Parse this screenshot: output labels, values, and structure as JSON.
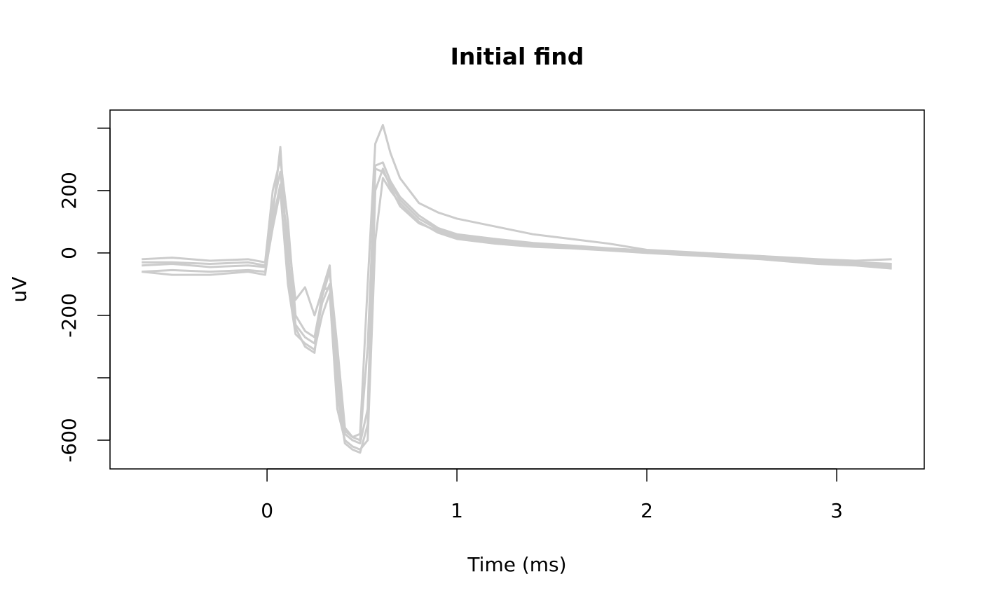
{
  "chart_data": {
    "type": "line",
    "title": "Initial find",
    "x_label": "Time (ms)",
    "y_label": "uV",
    "x": [
      -0.66,
      -0.5,
      -0.3,
      -0.1,
      -0.01,
      0.03,
      0.07,
      0.11,
      0.15,
      0.2,
      0.25,
      0.29,
      0.33,
      0.37,
      0.41,
      0.45,
      0.49,
      0.53,
      0.57,
      0.61,
      0.65,
      0.7,
      0.8,
      0.9,
      1.0,
      1.2,
      1.4,
      1.6,
      1.8,
      2.0,
      2.3,
      2.6,
      2.9,
      3.1,
      3.29
    ],
    "series": [
      {
        "color": "#cccccc",
        "values": [
          -40,
          -35,
          -45,
          -40,
          -45,
          150,
          260,
          0,
          -230,
          -270,
          -290,
          -160,
          -100,
          -400,
          -580,
          -600,
          -610,
          -500,
          270,
          260,
          220,
          170,
          110,
          75,
          55,
          40,
          28,
          20,
          12,
          5,
          -5,
          -15,
          -25,
          -30,
          -35
        ]
      },
      {
        "color": "#cccccc",
        "values": [
          -20,
          -15,
          -25,
          -20,
          -30,
          200,
          300,
          100,
          -200,
          -250,
          -270,
          -140,
          -60,
          -300,
          -560,
          -590,
          -600,
          -300,
          280,
          290,
          230,
          180,
          120,
          80,
          60,
          45,
          32,
          24,
          15,
          8,
          -2,
          -10,
          -20,
          -25,
          -20
        ]
      },
      {
        "color": "#cccccc",
        "values": [
          -60,
          -55,
          -60,
          -55,
          -60,
          80,
          200,
          -100,
          -260,
          -290,
          -310,
          -200,
          -130,
          -500,
          -600,
          -620,
          -630,
          -600,
          40,
          240,
          200,
          160,
          100,
          65,
          45,
          30,
          20,
          15,
          8,
          0,
          -10,
          -20,
          -35,
          -40,
          -50
        ]
      },
      {
        "color": "#cccccc",
        "values": [
          -60,
          -70,
          -70,
          -60,
          -70,
          100,
          220,
          50,
          -150,
          -110,
          -200,
          -120,
          -110,
          -350,
          -570,
          -590,
          -580,
          -100,
          350,
          410,
          320,
          240,
          160,
          130,
          110,
          85,
          60,
          45,
          30,
          10,
          0,
          -10,
          -25,
          -30,
          -40
        ]
      },
      {
        "color": "#cccccc",
        "values": [
          -30,
          -30,
          -35,
          -30,
          -40,
          120,
          340,
          -50,
          -240,
          -300,
          -320,
          -120,
          -40,
          -450,
          -610,
          -630,
          -640,
          -550,
          200,
          270,
          210,
          150,
          95,
          70,
          50,
          35,
          25,
          18,
          10,
          2,
          -8,
          -18,
          -30,
          -35,
          -45
        ]
      }
    ],
    "xlim": [
      -0.827,
      3.461
    ],
    "xticks": [
      0,
      1,
      2,
      3
    ],
    "ylim": [
      -692,
      458
    ],
    "yticks": [
      -600,
      -200,
      0,
      200
    ],
    "yticks_unlabeled": [
      -400,
      400
    ]
  }
}
